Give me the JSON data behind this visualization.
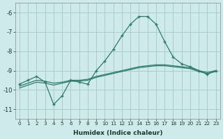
{
  "xlabel": "Humidex (Indice chaleur)",
  "bg_color": "#ceeaea",
  "grid_color": "#aacccc",
  "line_color": "#2e7b6b",
  "x_values": [
    0,
    1,
    2,
    3,
    4,
    5,
    6,
    7,
    8,
    9,
    10,
    11,
    12,
    13,
    14,
    15,
    16,
    17,
    18,
    19,
    20,
    21,
    22,
    23
  ],
  "series1": [
    -9.7,
    -9.5,
    -9.3,
    -9.6,
    -10.75,
    -10.3,
    -9.5,
    -9.6,
    -9.7,
    -9.0,
    -8.5,
    -7.9,
    -7.2,
    -6.6,
    -6.2,
    -6.2,
    -6.6,
    -7.5,
    -8.3,
    -8.65,
    -8.8,
    -9.0,
    -9.2,
    -9.0
  ],
  "series2": [
    -9.8,
    -9.65,
    -9.5,
    -9.55,
    -9.65,
    -9.6,
    -9.5,
    -9.5,
    -9.45,
    -9.3,
    -9.2,
    -9.1,
    -9.0,
    -8.9,
    -8.8,
    -8.75,
    -8.7,
    -8.7,
    -8.75,
    -8.8,
    -8.85,
    -9.0,
    -9.1,
    -9.0
  ],
  "series3": [
    -9.9,
    -9.75,
    -9.6,
    -9.65,
    -9.75,
    -9.65,
    -9.55,
    -9.55,
    -9.5,
    -9.35,
    -9.25,
    -9.15,
    -9.05,
    -8.95,
    -8.85,
    -8.8,
    -8.75,
    -8.75,
    -8.8,
    -8.85,
    -8.9,
    -9.05,
    -9.15,
    -9.05
  ],
  "ylim": [
    -11.5,
    -5.5
  ],
  "yticks": [
    -11,
    -10,
    -9,
    -8,
    -7,
    -6
  ],
  "xticks": [
    0,
    1,
    2,
    3,
    4,
    5,
    6,
    7,
    8,
    9,
    10,
    11,
    12,
    13,
    14,
    15,
    16,
    17,
    18,
    19,
    20,
    21,
    22,
    23
  ]
}
